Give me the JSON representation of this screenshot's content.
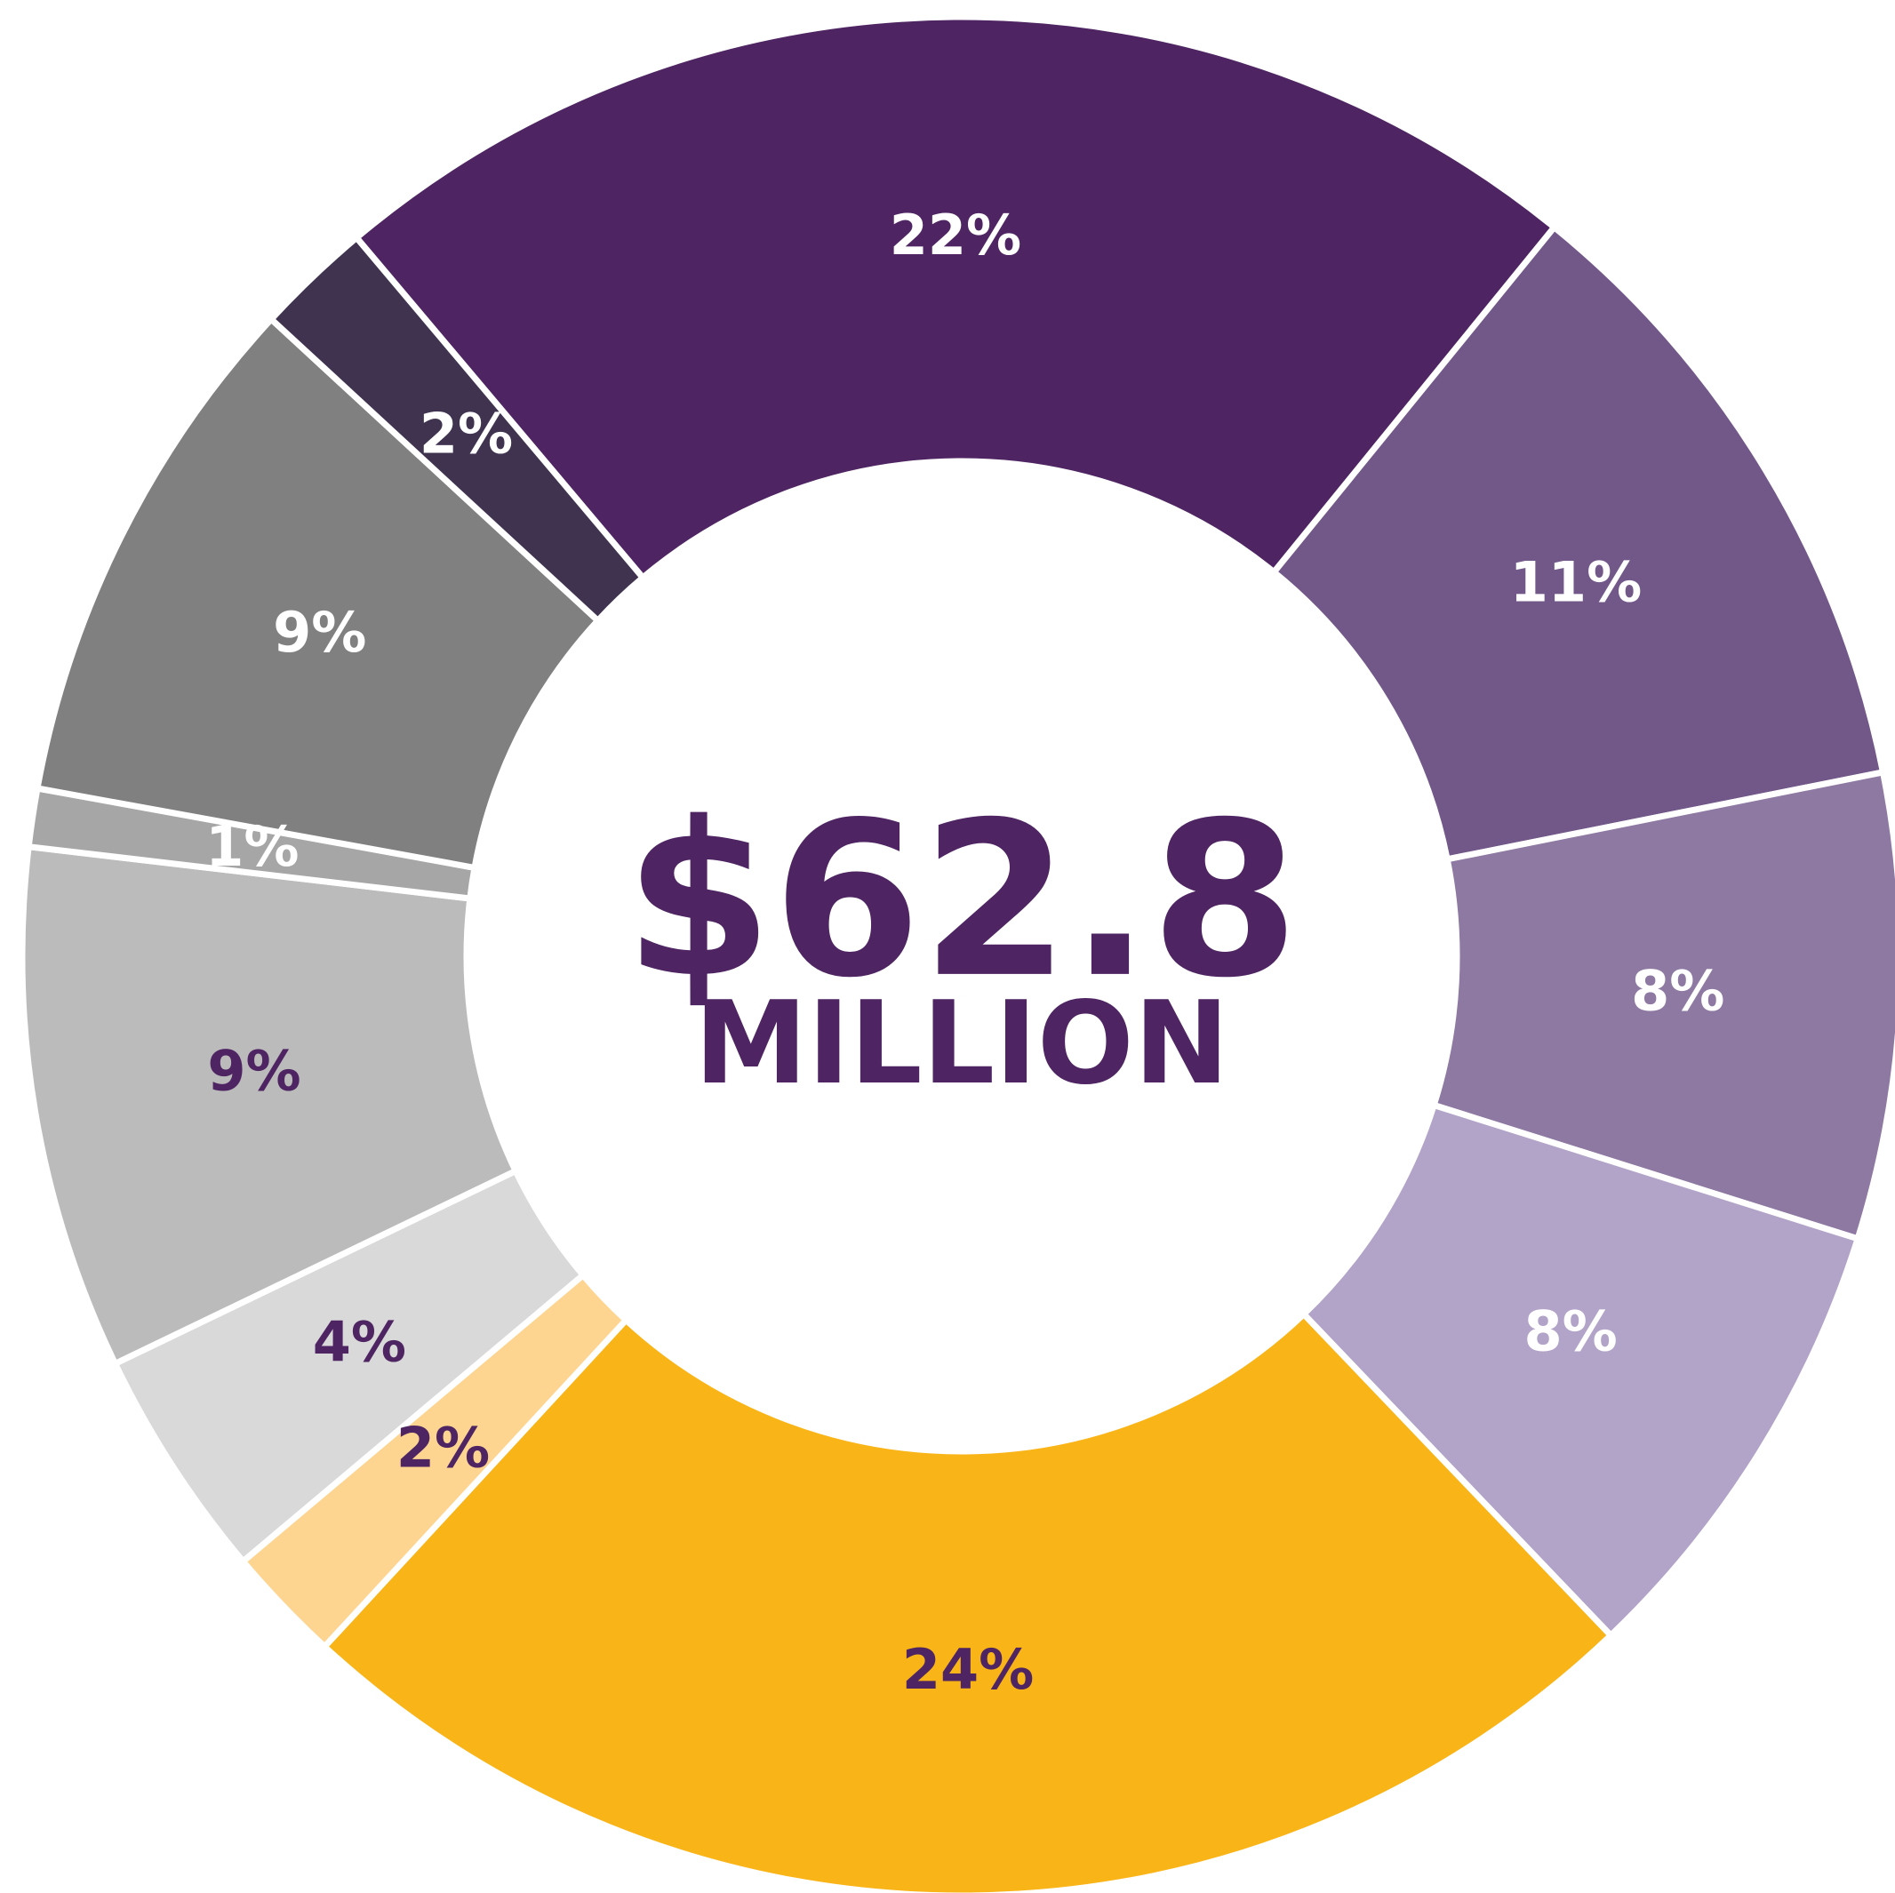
{
  "chart_data": {
    "type": "donut",
    "center_title": "$62.8",
    "center_subtitle": "MILLION",
    "values": [
      22,
      11,
      8,
      8,
      24,
      2,
      4,
      9,
      1,
      9,
      2
    ],
    "value_labels": [
      "22%",
      "11%",
      "8%",
      "8%",
      "24%",
      "2%",
      "4%",
      "9%",
      "1%",
      "9%",
      "2%"
    ],
    "colors": [
      "#4e2562",
      "#725889",
      "#8e79a3",
      "#b2a3c8",
      "#f9b418",
      "#fdd591",
      "#d9d9d9",
      "#bbbbbb",
      "#a6a6a6",
      "#808080",
      "#3f3350"
    ],
    "label_colors": [
      "#ffffff",
      "#ffffff",
      "#ffffff",
      "#ffffff",
      "#4e2562",
      "#4e2562",
      "#4e2562",
      "#4e2562",
      "#ffffff",
      "#ffffff",
      "#ffffff"
    ]
  }
}
